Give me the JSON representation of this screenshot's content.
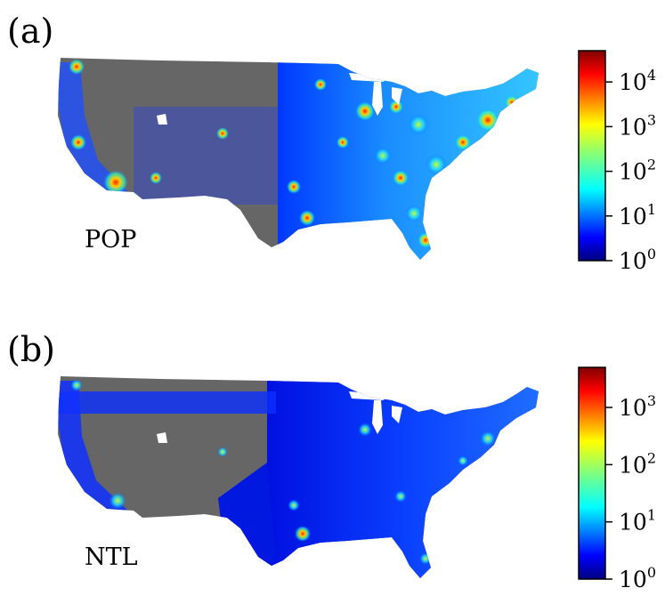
{
  "panels": [
    {
      "id": "a",
      "label": "(a)",
      "map_label": "POP",
      "colorbar": {
        "scale": "log",
        "min_exponent": 0,
        "max_exponent": 4.7,
        "ticks": [
          {
            "base": "10",
            "exp": "0",
            "value_exponent": 0
          },
          {
            "base": "10",
            "exp": "1",
            "value_exponent": 1
          },
          {
            "base": "10",
            "exp": "2",
            "value_exponent": 2
          },
          {
            "base": "10",
            "exp": "3",
            "value_exponent": 3
          },
          {
            "base": "10",
            "exp": "4",
            "value_exponent": 4
          }
        ]
      }
    },
    {
      "id": "b",
      "label": "(b)",
      "map_label": "NTL",
      "colorbar": {
        "scale": "log",
        "min_exponent": 0,
        "max_exponent": 3.7,
        "ticks": [
          {
            "base": "10",
            "exp": "0",
            "value_exponent": 0
          },
          {
            "base": "10",
            "exp": "1",
            "value_exponent": 1
          },
          {
            "base": "10",
            "exp": "2",
            "value_exponent": 2
          },
          {
            "base": "10",
            "exp": "3",
            "value_exponent": 3
          }
        ]
      }
    }
  ],
  "colors": {
    "no_data": "#666666",
    "colormap": [
      "#00007f",
      "#0000ff",
      "#007fff",
      "#00ffff",
      "#7fff7f",
      "#ffff00",
      "#ff7f00",
      "#ff0000",
      "#7f0000"
    ]
  }
}
